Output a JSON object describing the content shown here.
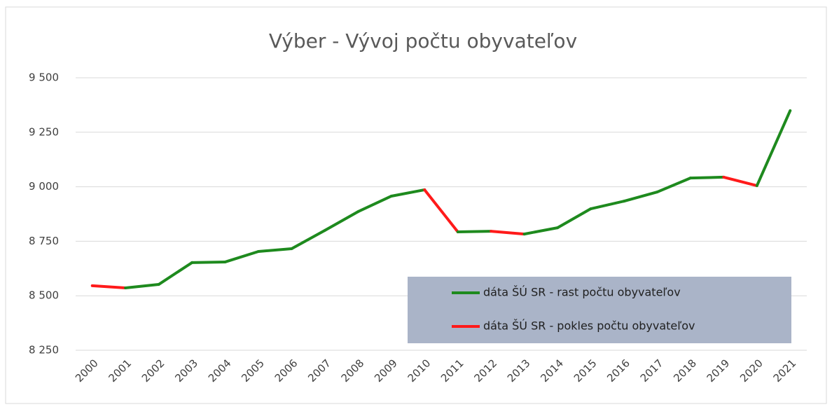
{
  "chart_data": {
    "type": "line",
    "title": "Výber - Vývoj počtu obyvateľov",
    "categories": [
      "2000",
      "2001",
      "2002",
      "2003",
      "2004",
      "2005",
      "2006",
      "2007",
      "2008",
      "2009",
      "2010",
      "2011",
      "2012",
      "2013",
      "2014",
      "2015",
      "2016",
      "2017",
      "2018",
      "2019",
      "2020",
      "2021"
    ],
    "values": [
      8546,
      8536,
      8552,
      8652,
      8655,
      8703,
      8716,
      8800,
      8886,
      8957,
      8986,
      8793,
      8796,
      8783,
      8812,
      8899,
      8934,
      8976,
      9040,
      9044,
      9005,
      9349
    ],
    "legend": [
      {
        "name": "dáta ŠÚ SR - rast počtu obyvateľov",
        "color": "#1e8a1e"
      },
      {
        "name": "dáta ŠÚ SR - pokles počtu obyvateľov",
        "color": "#ff1a1a"
      }
    ],
    "ylim": [
      8250,
      9500
    ],
    "yticks": [
      {
        "value": 8250,
        "label": "8 250"
      },
      {
        "value": 8500,
        "label": "8 500"
      },
      {
        "value": 8750,
        "label": "8 750"
      },
      {
        "value": 9000,
        "label": "9 000"
      },
      {
        "value": 9250,
        "label": "9 250"
      },
      {
        "value": 9500,
        "label": "9 500"
      }
    ],
    "grid": true
  }
}
